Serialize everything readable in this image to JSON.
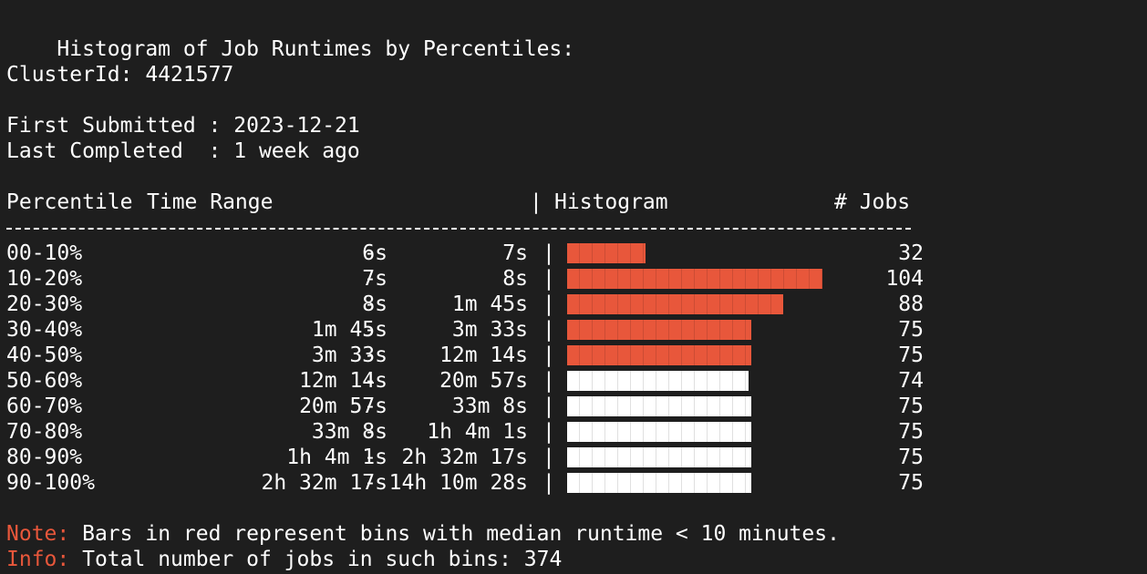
{
  "colors": {
    "background": "#1e1e1e",
    "text": "#ffffff",
    "red": "#e8573b",
    "white": "#ffffff"
  },
  "header": {
    "title": "Histogram of Job Runtimes by Percentiles:",
    "cluster_label": "ClusterId:",
    "cluster_id": "4421577",
    "first_label": "First Submitted :",
    "first_value": "2023-12-21",
    "last_label": "Last Completed  :",
    "last_value": "1 week ago"
  },
  "table": {
    "col_percentile": "Percentile",
    "col_time_range": "Time Range",
    "sep": "|",
    "col_histogram": "Histogram",
    "col_jobs": "# Jobs",
    "max_jobs": 104,
    "rows": [
      {
        "percentile": "00-10%",
        "start": "6s",
        "dash": "-",
        "end": "7s",
        "sep": "|",
        "jobs": "32",
        "value": 32,
        "color": "red"
      },
      {
        "percentile": "10-20%",
        "start": "7s",
        "dash": "-",
        "end": "8s",
        "sep": "|",
        "jobs": "104",
        "value": 104,
        "color": "red"
      },
      {
        "percentile": "20-30%",
        "start": "8s",
        "dash": "-",
        "end": "1m 45s",
        "sep": "|",
        "jobs": "88",
        "value": 88,
        "color": "red"
      },
      {
        "percentile": "30-40%",
        "start": "1m 45s",
        "dash": "-",
        "end": "3m 33s",
        "sep": "|",
        "jobs": "75",
        "value": 75,
        "color": "red"
      },
      {
        "percentile": "40-50%",
        "start": "3m 33s",
        "dash": "-",
        "end": "12m 14s",
        "sep": "|",
        "jobs": "75",
        "value": 75,
        "color": "red"
      },
      {
        "percentile": "50-60%",
        "start": "12m 14s",
        "dash": "-",
        "end": "20m 57s",
        "sep": "|",
        "jobs": "74",
        "value": 74,
        "color": "white"
      },
      {
        "percentile": "60-70%",
        "start": "20m 57s",
        "dash": "-",
        "end": "33m 8s",
        "sep": "|",
        "jobs": "75",
        "value": 75,
        "color": "white"
      },
      {
        "percentile": "70-80%",
        "start": "33m 8s",
        "dash": "-",
        "end": "1h 4m 1s",
        "sep": "|",
        "jobs": "75",
        "value": 75,
        "color": "white"
      },
      {
        "percentile": "80-90%",
        "start": "1h 4m 1s",
        "dash": "-",
        "end": "2h 32m 17s",
        "sep": "|",
        "jobs": "75",
        "value": 75,
        "color": "white"
      },
      {
        "percentile": "90-100%",
        "start": "2h 32m 17s",
        "dash": "-",
        "end": "14h 10m 28s",
        "sep": "|",
        "jobs": "75",
        "value": 75,
        "color": "white"
      }
    ]
  },
  "footer": {
    "note_label": "Note:",
    "note_text": "Bars in red represent bins with median runtime < 10 minutes.",
    "info_label": "Info:",
    "info_text": "Total number of jobs in such bins: 374"
  }
}
